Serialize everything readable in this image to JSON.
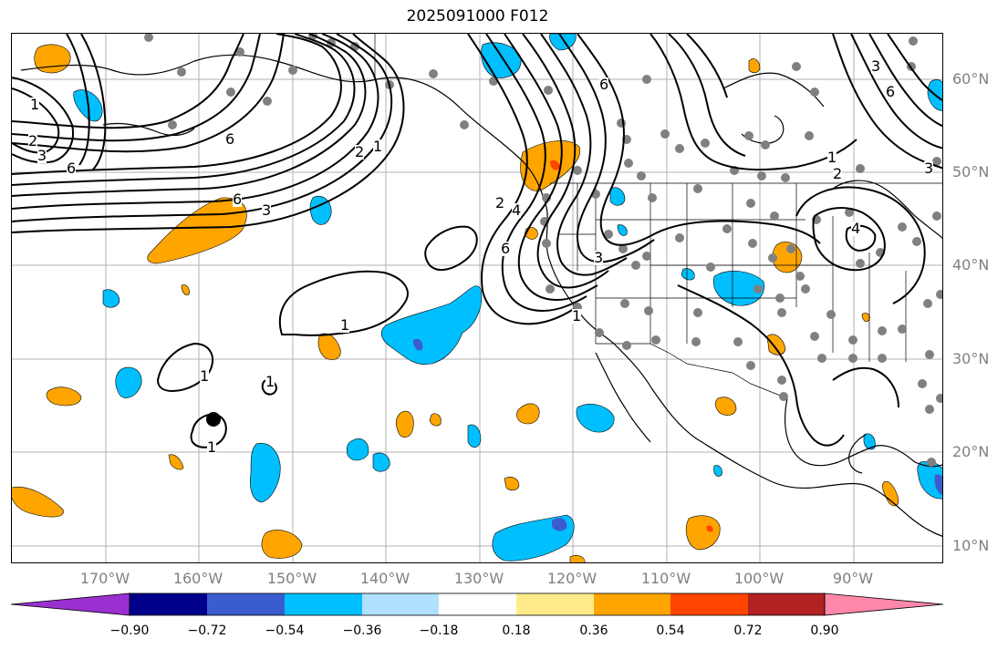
{
  "title": "2025091000 F012",
  "lat_labels": [
    "60°N",
    "50°N",
    "40°N",
    "30°N",
    "20°N",
    "10°N"
  ],
  "lon_labels": [
    "170°W",
    "160°W",
    "150°W",
    "140°W",
    "130°W",
    "120°W",
    "110°W",
    "100°W",
    "90°W"
  ],
  "colorbar": {
    "ticks": [
      "−0.90",
      "−0.72",
      "−0.54",
      "−0.36",
      "−0.18",
      "0.18",
      "0.36",
      "0.54",
      "0.72",
      "0.90"
    ],
    "colors": [
      "#9b30d0",
      "#00008b",
      "#3a5ccf",
      "#00bfff",
      "#b0e2ff",
      "#ffffff",
      "#ffeb8a",
      "#ffa500",
      "#ff4500",
      "#b22222",
      "#ff88aa"
    ]
  },
  "contour_labels": [
    "1",
    "2",
    "3",
    "6",
    "6",
    "6",
    "3",
    "2",
    "1",
    "1",
    "2",
    "4",
    "6",
    "6",
    "3",
    "1",
    "1",
    "3",
    "2",
    "1",
    "1",
    "6",
    "3",
    "4",
    "1"
  ],
  "colors": {
    "positive_orange": "#ffa500",
    "negative_blue": "#00bfff",
    "grid": "#b0b0b0",
    "station": "#808080"
  }
}
